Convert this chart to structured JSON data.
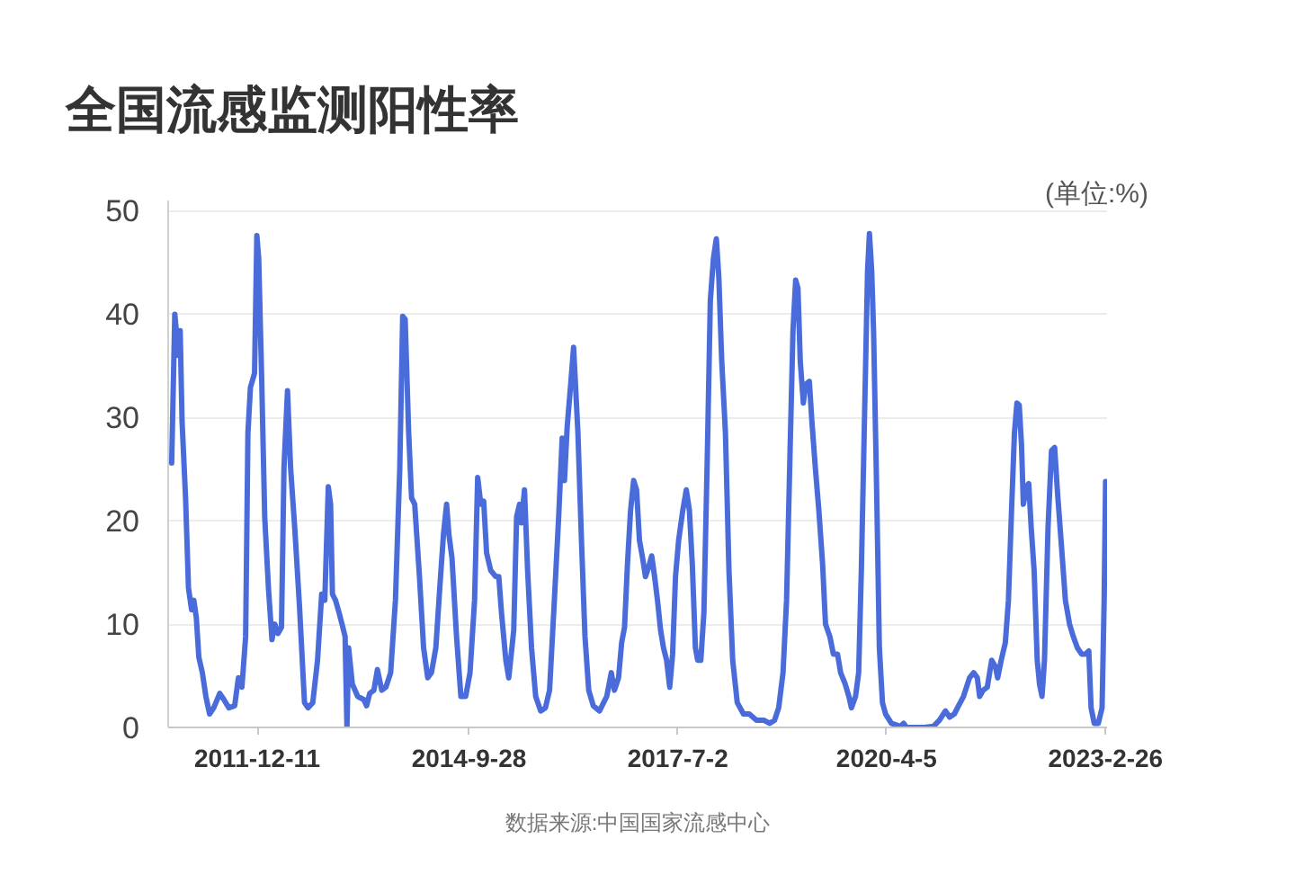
{
  "chart_data": {
    "type": "line",
    "title": "全国流感监测阳性率",
    "ylabel": "(单位:%)",
    "annotations": [
      "数据来源:中国国家流感中心"
    ],
    "color": "#4a6cdb",
    "x": [
      "2010-10-24",
      "2010-11-08",
      "2010-11-26",
      "2010-12-04",
      "2010-12-13",
      "2010-12-30",
      "2011-01-13",
      "2011-01-28",
      "2011-02-08",
      "2011-02-20",
      "2011-03-04",
      "2011-03-21",
      "2011-04-07",
      "2011-04-25",
      "2011-05-15",
      "2011-06-13",
      "2011-07-03",
      "2011-07-27",
      "2011-08-24",
      "2011-09-11",
      "2011-09-28",
      "2011-10-16",
      "2011-10-27",
      "2011-11-08",
      "2011-11-28",
      "2011-12-09",
      "2011-12-18",
      "2012-01-02",
      "2012-01-16",
      "2012-02-03",
      "2012-02-20",
      "2012-03-05",
      "2012-03-20",
      "2012-04-06",
      "2012-04-18",
      "2012-05-05",
      "2012-05-20",
      "2012-06-09",
      "2012-07-02",
      "2012-07-26",
      "2012-08-12",
      "2012-09-04",
      "2012-09-27",
      "2012-10-17",
      "2012-11-01",
      "2012-11-18",
      "2012-11-29",
      "2012-12-08",
      "2012-12-23",
      "2013-01-09",
      "2013-01-27",
      "2013-02-07",
      "2013-02-16",
      "2013-02-24",
      "2013-03-14",
      "2013-04-09",
      "2013-05-08",
      "2013-05-22",
      "2013-06-06",
      "2013-06-26",
      "2013-07-13",
      "2013-08-03",
      "2013-08-23",
      "2013-09-15",
      "2013-10-08",
      "2013-10-29",
      "2013-11-12",
      "2013-11-24",
      "2013-12-11",
      "2013-12-25",
      "2014-01-09",
      "2014-02-01",
      "2014-02-21",
      "2014-03-13",
      "2014-03-31",
      "2014-04-21",
      "2014-05-10",
      "2014-05-28",
      "2014-06-12",
      "2014-06-23",
      "2014-07-08",
      "2014-07-30",
      "2014-08-20",
      "2014-09-12",
      "2014-10-03",
      "2014-10-25",
      "2014-11-09",
      "2014-11-24",
      "2014-12-08",
      "2014-12-22",
      "2015-01-11",
      "2015-02-04",
      "2015-02-19",
      "2015-03-04",
      "2015-03-25",
      "2015-04-08",
      "2015-05-02",
      "2015-05-16",
      "2015-05-30",
      "2015-06-08",
      "2015-06-23",
      "2015-07-08",
      "2015-07-27",
      "2015-08-16",
      "2015-09-09",
      "2015-10-02",
      "2015-10-22",
      "2015-11-11",
      "2015-12-05",
      "2015-12-22",
      "2016-01-02",
      "2016-01-15",
      "2016-02-01",
      "2016-02-15",
      "2016-03-07",
      "2016-03-24",
      "2016-04-10",
      "2016-04-28",
      "2016-05-20",
      "2016-06-19",
      "2016-07-24",
      "2016-08-15",
      "2016-08-30",
      "2016-09-19",
      "2016-10-04",
      "2016-10-18",
      "2016-11-01",
      "2016-11-16",
      "2016-12-01",
      "2016-12-15",
      "2016-12-29",
      "2017-01-13",
      "2017-01-27",
      "2017-02-11",
      "2017-02-26",
      "2017-03-12",
      "2017-03-26",
      "2017-04-10",
      "2017-04-24",
      "2017-05-09",
      "2017-05-24",
      "2017-06-07",
      "2017-06-21",
      "2017-07-06",
      "2017-07-26",
      "2017-08-12",
      "2017-08-27",
      "2017-09-10",
      "2017-09-25",
      "2017-10-06",
      "2017-10-21",
      "2017-11-05",
      "2017-11-22",
      "2017-12-06",
      "2017-12-21",
      "2018-01-04",
      "2018-01-16",
      "2018-01-30",
      "2018-02-17",
      "2018-03-06",
      "2018-03-24",
      "2018-04-15",
      "2018-05-15",
      "2018-06-12",
      "2018-07-17",
      "2018-08-21",
      "2018-09-18",
      "2018-10-12",
      "2018-11-01",
      "2018-11-22",
      "2018-12-09",
      "2018-12-26",
      "2019-01-09",
      "2019-01-22",
      "2019-02-02",
      "2019-02-13",
      "2019-02-28",
      "2019-03-11",
      "2019-03-29",
      "2019-04-10",
      "2019-04-27",
      "2019-05-14",
      "2019-06-01",
      "2019-06-15",
      "2019-07-06",
      "2019-07-23",
      "2019-08-12",
      "2019-08-27",
      "2019-09-18",
      "2019-10-06",
      "2019-10-18",
      "2019-11-07",
      "2019-11-22",
      "2019-12-05",
      "2019-12-20",
      "2020-01-04",
      "2020-01-13",
      "2020-01-24",
      "2020-02-02",
      "2020-02-16",
      "2020-03-01",
      "2020-03-16",
      "2020-03-31",
      "2020-04-28",
      "2020-06-11",
      "2020-06-26",
      "2020-07-09",
      "2020-10-04",
      "2020-11-17",
      "2020-12-16",
      "2021-01-14",
      "2021-02-03",
      "2021-02-26",
      "2021-03-13",
      "2021-04-11",
      "2021-05-10",
      "2021-05-30",
      "2021-06-17",
      "2021-06-28",
      "2021-07-15",
      "2021-08-04",
      "2021-08-25",
      "2021-09-12",
      "2021-09-23",
      "2021-10-10",
      "2021-10-30",
      "2021-11-14",
      "2021-11-29",
      "2021-12-13",
      "2021-12-25",
      "2022-01-05",
      "2022-01-16",
      "2022-01-25",
      "2022-02-09",
      "2022-02-20",
      "2022-03-04",
      "2022-03-18",
      "2022-04-02",
      "2022-04-13",
      "2022-04-25",
      "2022-05-07",
      "2022-05-24",
      "2022-06-10",
      "2022-06-25",
      "2022-07-09",
      "2022-07-26",
      "2022-08-16",
      "2022-09-05",
      "2022-09-23",
      "2022-10-13",
      "2022-11-02",
      "2022-11-20",
      "2022-12-07",
      "2022-12-18",
      "2023-01-02",
      "2023-01-22",
      "2023-02-09",
      "2023-02-19",
      "2023-02-26"
    ],
    "values": [
      25.6,
      40.0,
      36.0,
      38.4,
      29.7,
      22.2,
      13.5,
      11.4,
      12.3,
      10.6,
      6.8,
      5.3,
      3.0,
      1.3,
      1.9,
      3.3,
      2.7,
      1.9,
      2.1,
      4.8,
      3.9,
      8.8,
      28.5,
      32.9,
      34.3,
      47.6,
      45.4,
      33.2,
      20.4,
      13.5,
      8.5,
      10.0,
      9.1,
      9.7,
      25.1,
      32.6,
      25.1,
      19.3,
      11.7,
      2.4,
      1.9,
      2.4,
      6.5,
      12.9,
      12.3,
      23.3,
      21.6,
      12.9,
      12.3,
      11.1,
      9.7,
      8.8,
      0.0,
      7.7,
      4.2,
      3.0,
      2.7,
      2.1,
      3.3,
      3.6,
      5.6,
      3.6,
      3.9,
      5.3,
      12.3,
      25.1,
      39.8,
      39.5,
      28.5,
      22.2,
      21.6,
      14.6,
      7.7,
      4.8,
      5.3,
      7.7,
      13.5,
      18.7,
      21.6,
      18.7,
      16.4,
      8.8,
      3.0,
      3.0,
      5.3,
      12.3,
      24.2,
      21.6,
      21.9,
      16.9,
      15.2,
      14.6,
      14.6,
      11.1,
      6.5,
      4.8,
      9.4,
      20.4,
      21.6,
      19.8,
      23.0,
      15.2,
      7.7,
      3.0,
      1.6,
      1.9,
      3.6,
      11.1,
      20.4,
      28.0,
      23.9,
      29.1,
      33.2,
      36.8,
      28.5,
      18.1,
      8.8,
      3.6,
      2.1,
      1.6,
      3.0,
      5.3,
      3.6,
      4.8,
      8.2,
      9.7,
      15.8,
      21.0,
      23.9,
      23.0,
      18.1,
      16.4,
      14.6,
      15.5,
      16.6,
      14.6,
      12.3,
      9.4,
      7.7,
      6.5,
      3.9,
      7.1,
      14.6,
      18.1,
      21.0,
      23.0,
      21.0,
      15.8,
      7.7,
      6.5,
      6.5,
      11.1,
      26.8,
      41.3,
      45.4,
      47.3,
      43.6,
      35.5,
      28.5,
      15.2,
      6.5,
      2.4,
      1.3,
      1.3,
      0.7,
      0.7,
      0.4,
      0.7,
      1.9,
      5.3,
      12.3,
      26.8,
      38.4,
      43.3,
      42.5,
      35.5,
      31.4,
      33.2,
      33.5,
      29.7,
      25.1,
      21.0,
      15.8,
      10.0,
      8.8,
      7.1,
      7.1,
      5.3,
      4.2,
      3.0,
      1.9,
      3.0,
      5.3,
      15.2,
      29.7,
      44.2,
      47.8,
      44.2,
      38.4,
      23.9,
      7.7,
      2.4,
      1.3,
      0.4,
      0.1,
      0.4,
      0.0,
      0.0,
      0.1,
      0.7,
      1.6,
      1.0,
      1.3,
      1.9,
      3.0,
      4.8,
      5.3,
      4.8,
      3.0,
      3.6,
      3.9,
      6.5,
      5.9,
      4.8,
      6.5,
      8.2,
      12.3,
      21.0,
      28.5,
      31.4,
      31.2,
      27.4,
      21.6,
      23.3,
      23.6,
      19.3,
      15.2,
      6.5,
      4.2,
      3.0,
      6.5,
      19.3,
      26.8,
      27.1,
      22.7,
      18.1,
      12.3,
      10.0,
      8.8,
      7.7,
      7.1,
      7.1,
      7.4,
      1.9,
      0.4,
      0.4,
      1.9,
      12.3,
      23.8
    ],
    "xlim": [
      "2010-10-07",
      "2023-03-05"
    ],
    "ylim": [
      0,
      51
    ],
    "xticks": [
      {
        "value": "2011-12-11",
        "label": "2011-12-11"
      },
      {
        "value": "2014-09-28",
        "label": "2014-9-28"
      },
      {
        "value": "2017-07-02",
        "label": "2017-7-2"
      },
      {
        "value": "2020-04-05",
        "label": "2020-4-5"
      },
      {
        "value": "2023-02-26",
        "label": "2023-2-26"
      }
    ],
    "yticks": [
      0,
      10,
      20,
      30,
      40,
      50
    ],
    "grid": "y"
  }
}
